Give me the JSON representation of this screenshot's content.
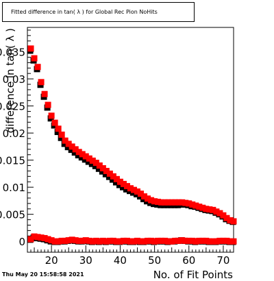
{
  "header": {
    "title": "Fitted difference in tan( λ ) for Global Rec Pion NoHits"
  },
  "footer": {
    "timestamp": "Thu May 20 15:58:58 2021"
  },
  "chart_data": {
    "type": "scatter",
    "title": "Fitted difference in tan( λ ) for Global Rec Pion NoHits",
    "xlabel": "No. of Fit Points",
    "ylabel": "difference in tan( λ )",
    "xlim": [
      13,
      73
    ],
    "ylim": [
      -0.002,
      0.0395
    ],
    "x_ticks": [
      20,
      30,
      40,
      50,
      60,
      70
    ],
    "x_tick_labels": [
      "20",
      "30",
      "40",
      "50",
      "60",
      "70"
    ],
    "y_ticks": [
      0,
      0.005,
      0.01,
      0.015,
      0.02,
      0.025,
      0.03,
      0.035
    ],
    "y_tick_labels": [
      "0",
      "0.005",
      "0.01",
      "0.015",
      "0.02",
      "0.025",
      "0.03",
      "0.035"
    ],
    "grid": false,
    "colors": {
      "series_upper": "#ff0000",
      "series_lower": "#000000"
    },
    "x": [
      14,
      15,
      16,
      17,
      18,
      19,
      20,
      21,
      22,
      23,
      24,
      25,
      26,
      27,
      28,
      29,
      30,
      31,
      32,
      33,
      34,
      35,
      36,
      37,
      38,
      39,
      40,
      41,
      42,
      43,
      44,
      45,
      46,
      47,
      48,
      49,
      50,
      51,
      52,
      53,
      54,
      55,
      56,
      57,
      58,
      59,
      60,
      61,
      62,
      63,
      64,
      65,
      66,
      67,
      68,
      69,
      70,
      71,
      72,
      73
    ],
    "series": [
      {
        "values": [
          0.0356,
          0.0338,
          0.0322,
          0.0294,
          0.0272,
          0.0252,
          0.0232,
          0.0219,
          0.0208,
          0.0197,
          0.0186,
          0.018,
          0.0175,
          0.017,
          0.0165,
          0.0161,
          0.0157,
          0.0153,
          0.0149,
          0.0145,
          0.014,
          0.0135,
          0.013,
          0.0125,
          0.012,
          0.0115,
          0.011,
          0.0106,
          0.0102,
          0.0098,
          0.0095,
          0.0092,
          0.0088,
          0.0083,
          0.0079,
          0.0076,
          0.0074,
          0.0073,
          0.0072,
          0.0072,
          0.0072,
          0.0072,
          0.0072,
          0.0072,
          0.0072,
          0.0071,
          0.007,
          0.0068,
          0.0066,
          0.0064,
          0.0062,
          0.006,
          0.0059,
          0.0058,
          0.0055,
          0.0052,
          0.0048,
          0.0043,
          0.0039,
          0.0037
        ]
      },
      {
        "values": [
          0.0352,
          0.0334,
          0.0318,
          0.0289,
          0.0267,
          0.0247,
          0.0227,
          0.0214,
          0.0202,
          0.0191,
          0.018,
          0.0174,
          0.0169,
          0.0164,
          0.0159,
          0.0155,
          0.0151,
          0.0147,
          0.0143,
          0.0139,
          0.0134,
          0.0129,
          0.0124,
          0.0119,
          0.0114,
          0.0109,
          0.0104,
          0.01,
          0.0096,
          0.0093,
          0.009,
          0.0087,
          0.0083,
          0.0078,
          0.0074,
          0.0071,
          0.0069,
          0.0068,
          0.0067,
          0.0067,
          0.0067,
          0.0067,
          0.0067,
          0.0067,
          0.0068,
          0.0068,
          0.0067,
          0.0065,
          0.0064,
          0.0062,
          0.006,
          0.0058,
          0.0057,
          0.0056,
          0.0053,
          0.005,
          0.0046,
          0.0041,
          0.0038,
          0.0036
        ]
      },
      {
        "values": [
          0.0004,
          0.0009,
          0.0008,
          0.0007,
          0.0006,
          0.0004,
          0.0002,
          0.0,
          0.0,
          0.0001,
          0.0001,
          0.0002,
          0.0003,
          0.0002,
          0.0001,
          0.0001,
          0.0002,
          0.0001,
          0.0,
          0.0001,
          0.0,
          0.0001,
          0.0,
          0.0001,
          0.0001,
          0.0,
          0.0,
          0.0001,
          0.0001,
          0.0,
          0.0,
          0.0001,
          0.0,
          0.0,
          0.0001,
          0.0001,
          0.0,
          0.0001,
          0.0001,
          0.0001,
          0.0,
          0.0,
          0.0001,
          0.0001,
          0.0002,
          0.0001,
          0.0001,
          0.0001,
          0.0,
          0.0001,
          0.0001,
          0.0001,
          0.0,
          0.0,
          0.0,
          0.0001,
          0.0001,
          0.0001,
          0.0,
          0.0
        ]
      },
      {
        "values": [
          0.0003,
          0.0007,
          0.0006,
          0.0005,
          0.0004,
          0.0002,
          0.0,
          -0.0001,
          -0.0001,
          0.0,
          0.0,
          0.0001,
          0.0002,
          0.0001,
          0.0,
          0.0,
          0.0001,
          0.0,
          -0.0001,
          0.0,
          -0.0001,
          0.0,
          -0.0001,
          0.0,
          0.0,
          -0.0001,
          -0.0001,
          0.0,
          0.0,
          -0.0001,
          -0.0001,
          0.0,
          -0.0001,
          -0.0001,
          0.0,
          0.0,
          -0.0001,
          0.0,
          0.0,
          0.0,
          -0.0001,
          0.0,
          0.0,
          0.0001,
          0.0002,
          0.0001,
          0.0,
          0.0,
          -0.0001,
          0.0,
          0.0,
          0.0,
          -0.0001,
          -0.0001,
          -0.0001,
          0.0,
          0.0,
          0.0,
          -0.0001,
          -0.0001
        ]
      }
    ]
  }
}
